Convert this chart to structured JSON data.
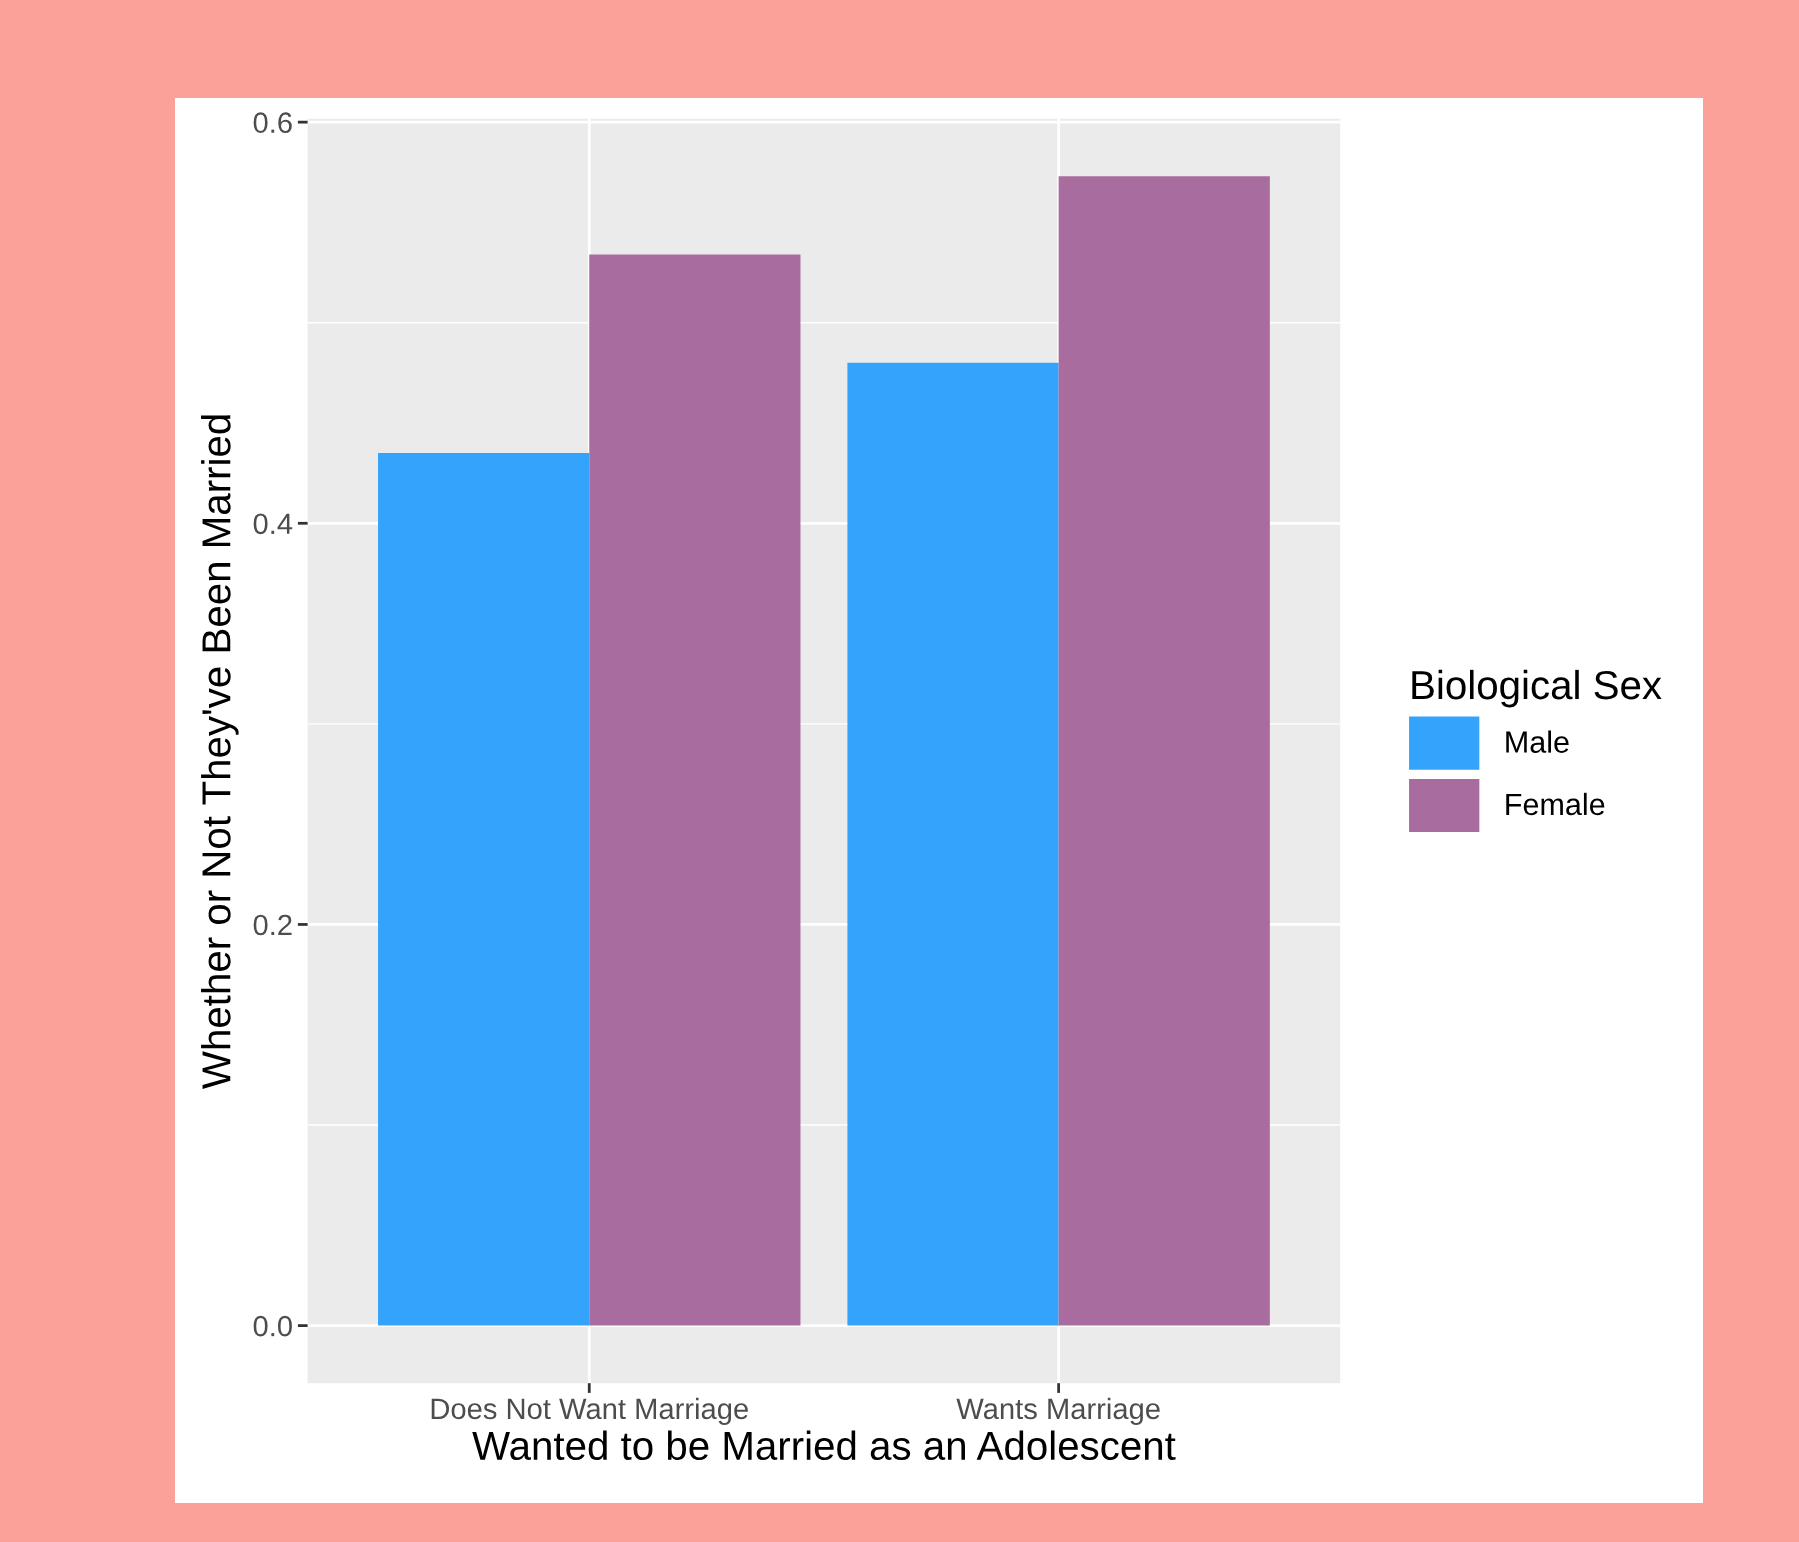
{
  "chart_data": {
    "type": "bar",
    "xlabel": "Wanted to be Married as an Adolescent",
    "ylabel": "Whether or Not They've Been Married",
    "legend_title": "Biological Sex",
    "categories": [
      "Does Not Want Marriage",
      "Wants Marriage"
    ],
    "series": [
      {
        "name": "Male",
        "color": "#33a3fc",
        "values": [
          0.435,
          0.48
        ]
      },
      {
        "name": "Female",
        "color": "#a86c9f",
        "values": [
          0.534,
          0.573
        ]
      }
    ],
    "ylim": [
      -0.0287,
      0.6017
    ],
    "yticks": [
      {
        "value": 0,
        "label": "0.0"
      },
      {
        "value": 0.2,
        "label": "0.2"
      },
      {
        "value": 0.4,
        "label": "0.4"
      },
      {
        "value": 0.6,
        "label": "0.6"
      }
    ],
    "grid": true,
    "legend": "right"
  }
}
